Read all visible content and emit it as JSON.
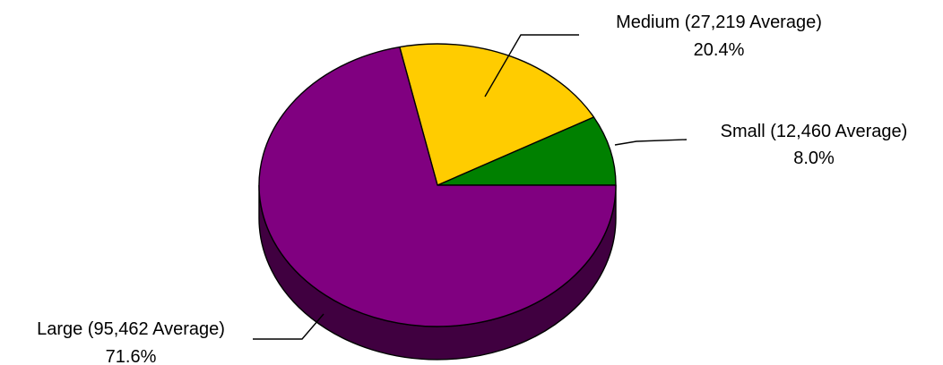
{
  "chart_data": {
    "type": "pie",
    "three_d": true,
    "title": "",
    "legend": "none",
    "slices": [
      {
        "label": "Small (12,460 Average)",
        "percent_label": "8.0%",
        "value": 8.0,
        "color": "#008000",
        "side_color": "#004000"
      },
      {
        "label": "Medium (27,219 Average)",
        "percent_label": "20.4%",
        "value": 20.4,
        "color": "#FFCC00",
        "side_color": "#806600"
      },
      {
        "label": "Large (95,462 Average)",
        "percent_label": "71.6%",
        "value": 71.6,
        "color": "#800080",
        "side_color": "#400040"
      }
    ]
  }
}
